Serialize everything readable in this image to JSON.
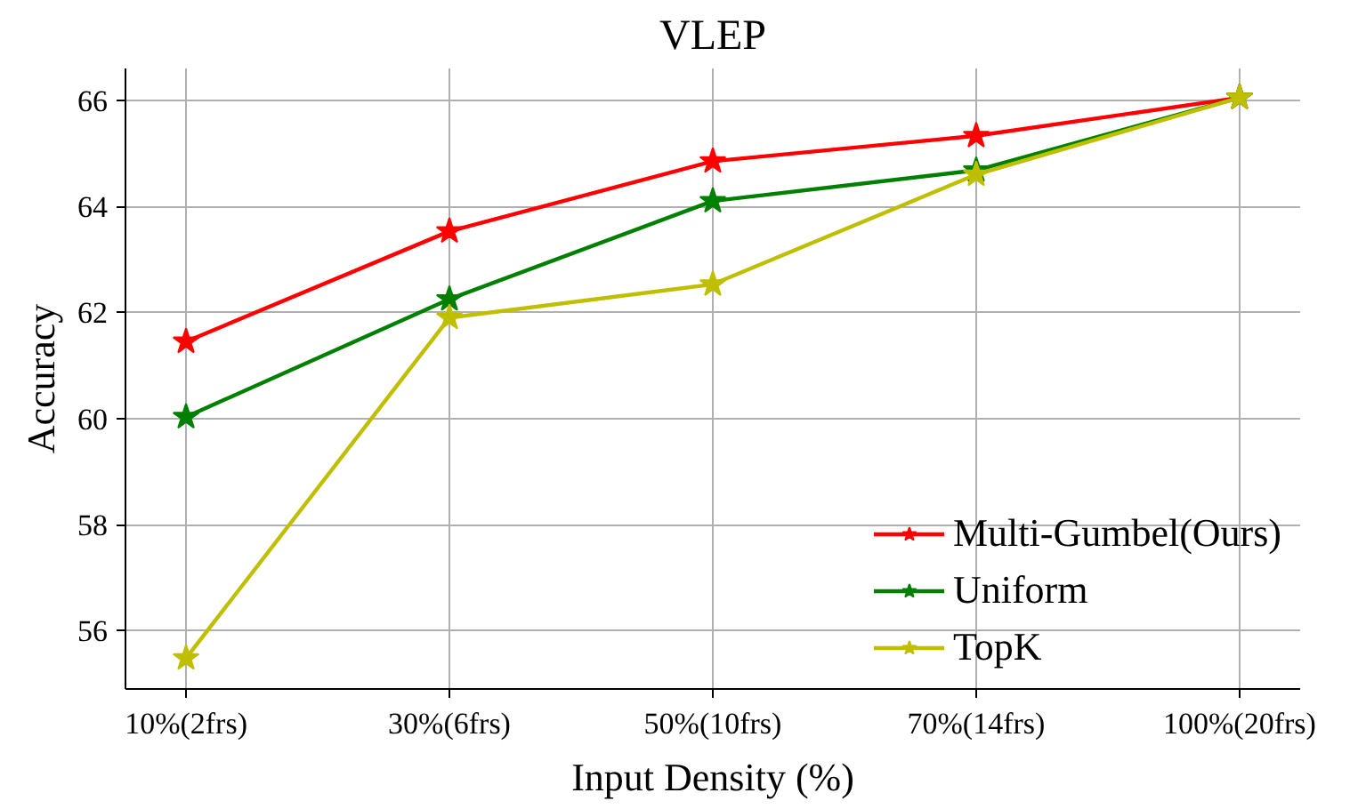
{
  "chart_data": {
    "type": "line",
    "title": "VLEP",
    "xlabel": "Input Density (%)",
    "ylabel": "Accuracy",
    "categories": [
      "10%(2frs)",
      "30%(6frs)",
      "50%(10frs)",
      "70%(14frs)",
      "100%(20frs)"
    ],
    "ylim": [
      54.9,
      66.6
    ],
    "yticks": [
      56,
      58,
      60,
      62,
      64,
      66
    ],
    "grid": true,
    "legend": "bottom right",
    "marker": "star",
    "line_style": "solid",
    "series": [
      {
        "name": "Multi-Gumbel(Ours)",
        "color": "#ff0000",
        "values": [
          61.45,
          63.53,
          64.85,
          65.33,
          66.05
        ]
      },
      {
        "name": "Uniform",
        "color": "#008000",
        "values": [
          60.03,
          62.25,
          64.1,
          64.68,
          66.05
        ]
      },
      {
        "name": "TopK",
        "color": "#bfbf00",
        "values": [
          55.48,
          61.9,
          62.53,
          64.6,
          66.05
        ]
      }
    ]
  }
}
